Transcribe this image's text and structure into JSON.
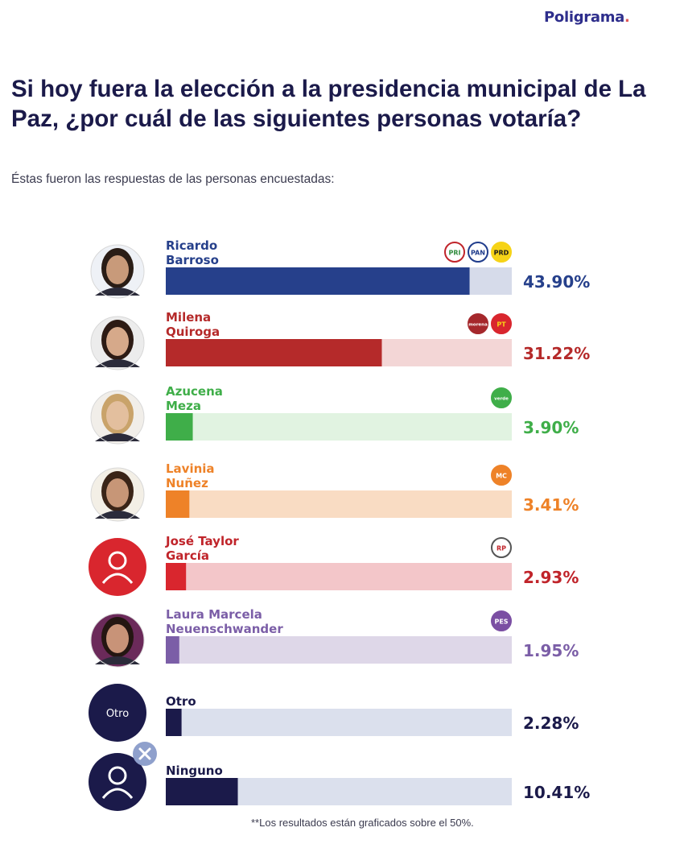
{
  "brand": "Poligrama",
  "title": "Si hoy fuera la elección a la presidencia municipal de La Paz, ¿por cuál de las siguientes personas votaría?",
  "subtitle": "Éstas fueron las respuestas de las personas encuestadas:",
  "footnote": "**Los resultados están graficados sobre el 50%.",
  "chart_data": {
    "type": "bar",
    "orientation": "horizontal",
    "xlim": [
      0,
      50
    ],
    "value_suffix": "%",
    "rows": [
      {
        "name_lines": [
          "Ricardo",
          "Barroso"
        ],
        "value": 43.9,
        "label": "43.90%",
        "color": "#26408b",
        "track": "#d6dbea",
        "avatar": "photo",
        "parties": [
          "PRI",
          "PAN",
          "PRD"
        ]
      },
      {
        "name_lines": [
          "Milena",
          "Quiroga"
        ],
        "value": 31.22,
        "label": "31.22%",
        "color": "#b52a2a",
        "track": "#f3d6d6",
        "avatar": "photo",
        "parties": [
          "morena",
          "PT"
        ]
      },
      {
        "name_lines": [
          "Azucena",
          "Meza"
        ],
        "value": 3.9,
        "label": "3.90%",
        "color": "#3fae49",
        "track": "#e1f3e1",
        "avatar": "photo",
        "parties": [
          "verde"
        ]
      },
      {
        "name_lines": [
          "Lavinia",
          "Nuñez"
        ],
        "value": 3.41,
        "label": "3.41%",
        "color": "#ee8228",
        "track": "#f9dcc3",
        "avatar": "photo",
        "parties": [
          "MC"
        ]
      },
      {
        "name_lines": [
          "José Taylor",
          "García"
        ],
        "value": 2.93,
        "label": "2.93%",
        "color": "#d9262e",
        "track": "#f3c6c9",
        "avatar": "placeholder",
        "parties": [
          "RP"
        ]
      },
      {
        "name_lines": [
          "Laura Marcela",
          "Neuenschwander"
        ],
        "value": 1.95,
        "label": "1.95%",
        "color": "#7b5ea7",
        "track": "#ded7e8",
        "avatar": "photo",
        "parties": [
          "PES"
        ]
      },
      {
        "name_lines": [
          "Otro"
        ],
        "value": 2.28,
        "label": "2.28%",
        "color": "#1b1a4a",
        "track": "#dbe0ed",
        "avatar": "text",
        "avatar_text": "Otro",
        "parties": []
      },
      {
        "name_lines": [
          "Ninguno"
        ],
        "value": 10.41,
        "label": "10.41%",
        "color": "#1b1a4a",
        "track": "#dbe0ed",
        "avatar": "placeholder-x",
        "parties": []
      }
    ],
    "party_badges": {
      "PRI": {
        "text": "PRI",
        "bg": "#ffffff",
        "fg": "#2f8a3b",
        "ring": "#c0242a"
      },
      "PAN": {
        "text": "PAN",
        "bg": "#ffffff",
        "fg": "#1f3c8c",
        "ring": "#1f3c8c"
      },
      "PRD": {
        "text": "PRD",
        "bg": "#f6d317",
        "fg": "#1b1a1a",
        "ring": "#f6d317"
      },
      "morena": {
        "text": "morena",
        "bg": "#a5282c",
        "fg": "#ffffff",
        "ring": "#a5282c"
      },
      "PT": {
        "text": "PT",
        "bg": "#d9262e",
        "fg": "#f6d317",
        "ring": "#d9262e"
      },
      "verde": {
        "text": "verde",
        "bg": "#3fae49",
        "fg": "#ffffff",
        "ring": "#3fae49"
      },
      "MC": {
        "text": "MC",
        "bg": "#ee8228",
        "fg": "#ffffff",
        "ring": "#ee8228"
      },
      "RP": {
        "text": "RP",
        "bg": "#ffffff",
        "fg": "#c0242a",
        "ring": "#555555"
      },
      "PES": {
        "text": "PES",
        "bg": "#7b4fa3",
        "fg": "#ffffff",
        "ring": "#7b4fa3"
      }
    }
  }
}
